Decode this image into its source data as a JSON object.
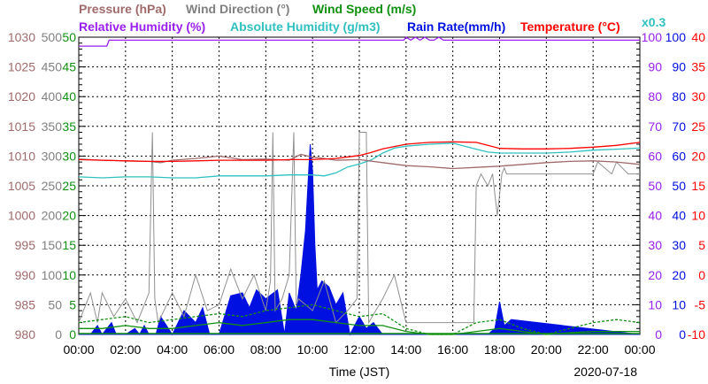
{
  "chart_data": {
    "type": "line",
    "legend": [
      {
        "label": "Pressure (hPa)",
        "color": "#a06a6a"
      },
      {
        "label": "Wind Direction (°)",
        "color": "#808080"
      },
      {
        "label": "Wind Speed (m/s)",
        "color": "#109010"
      },
      {
        "label": "Relative Humidity (%)",
        "color": "#9a1ff0"
      },
      {
        "label": "Absolute Humidity (g/m3)",
        "color": "#30c0c0"
      },
      {
        "label": "Rain Rate(mm/h)",
        "color": "#0010e0"
      },
      {
        "label": "Temperature (°C)",
        "color": "#ff0000"
      },
      {
        "label": "x0.3",
        "color": "#30c0c0"
      }
    ],
    "xlabel": "Time (JST)",
    "date": "2020-07-18",
    "x_ticks": [
      "00:00",
      "02:00",
      "04:00",
      "06:00",
      "08:00",
      "10:00",
      "12:00",
      "14:00",
      "16:00",
      "18:00",
      "20:00",
      "22:00",
      "00:00"
    ],
    "xlim_hours": [
      0,
      24
    ],
    "axes": {
      "pressure": {
        "range": [
          980,
          1030
        ],
        "ticks": [
          "1030",
          "1025",
          "1020",
          "1015",
          "1010",
          "1005",
          "1000",
          "995",
          "990",
          "985",
          "980"
        ],
        "color": "#a06a6a"
      },
      "wind_direction": {
        "range": [
          0,
          500
        ],
        "ticks": [
          "500",
          "450",
          "400",
          "350",
          "300",
          "250",
          "200",
          "150",
          "100",
          "50",
          "0"
        ],
        "color": "#808080"
      },
      "wind_speed": {
        "range": [
          0,
          50
        ],
        "ticks": [
          "50",
          "45",
          "40",
          "35",
          "30",
          "25",
          "20",
          "15",
          "10",
          "5",
          "0"
        ],
        "color": "#109010"
      },
      "humidity": {
        "range": [
          0,
          100
        ],
        "ticks": [
          "100",
          "90",
          "80",
          "70",
          "60",
          "50",
          "40",
          "30",
          "20",
          "10",
          "0"
        ],
        "color": "#9a1ff0"
      },
      "rain": {
        "range": [
          0,
          100
        ],
        "ticks": [
          "100",
          "90",
          "80",
          "70",
          "60",
          "50",
          "40",
          "30",
          "20",
          "10",
          "0"
        ],
        "color": "#0010e0"
      },
      "temperature": {
        "range": [
          -10,
          40
        ],
        "ticks": [
          "40",
          "35",
          "30",
          "25",
          "20",
          "15",
          "10",
          "5",
          "0",
          "-5",
          "-10"
        ],
        "color": "#ff0000"
      }
    },
    "series": [
      {
        "name": "Temperature",
        "axis": "temperature",
        "x": [
          0,
          1,
          2,
          3,
          4,
          5,
          6,
          7,
          8,
          9,
          9.5,
          10,
          11,
          12,
          12.5,
          13,
          13.5,
          14,
          15,
          16,
          17,
          17.5,
          18,
          19,
          20,
          21,
          22,
          23,
          24
        ],
        "y": [
          19.4,
          19.3,
          19.2,
          19.1,
          19.1,
          19.2,
          19.3,
          19.3,
          19.3,
          19.4,
          19.4,
          19.4,
          19.6,
          20.1,
          20.6,
          21.2,
          21.6,
          22,
          22.3,
          22.4,
          22.3,
          21.8,
          21.3,
          21.2,
          21.2,
          21.3,
          21.5,
          21.8,
          22.3
        ]
      },
      {
        "name": "Pressure",
        "axis": "pressure",
        "x": [
          0,
          1,
          2,
          3,
          3.5,
          4,
          5,
          6,
          7,
          8,
          9,
          9.5,
          10,
          10.5,
          11,
          12,
          13,
          14,
          15,
          16,
          17,
          18,
          19,
          20,
          21,
          22,
          23,
          24
        ],
        "y": [
          1009.5,
          1009.3,
          1009.2,
          1009.1,
          1008.9,
          1009.3,
          1009.6,
          1010,
          1009.4,
          1009.5,
          1009.3,
          1010.3,
          1009.8,
          1009.6,
          1009.3,
          1009.4,
          1008.9,
          1008.4,
          1008.2,
          1007.9,
          1008.1,
          1008.3,
          1008.6,
          1008.9,
          1009.1,
          1009.2,
          1009,
          1008.6
        ]
      },
      {
        "name": "Absolute Humidity",
        "axis": "humidity",
        "scale": 0.3,
        "x": [
          0,
          1,
          2,
          3,
          4,
          5,
          6,
          7,
          8,
          9,
          10,
          10.5,
          11,
          11.5,
          12,
          12.5,
          13,
          13.5,
          14,
          15,
          16,
          17,
          17.5,
          18,
          19,
          20,
          21,
          22,
          23,
          24
        ],
        "y": [
          15.9,
          15.8,
          15.9,
          15.9,
          15.8,
          15.8,
          16,
          16,
          16,
          16.1,
          16.1,
          16,
          16.3,
          16.9,
          17.2,
          17.6,
          18.3,
          18.8,
          19,
          19.2,
          19.3,
          18.7,
          18.4,
          18.3,
          18.3,
          18.3,
          18.4,
          18.6,
          18.7,
          18.8
        ]
      },
      {
        "name": "Relative Humidity",
        "axis": "humidity",
        "x": [
          0,
          1.2,
          1.3,
          13.9,
          14,
          14.2,
          14.4,
          14.6,
          14.8,
          15,
          15.2,
          15.4,
          15.6,
          24
        ],
        "y": [
          97,
          97,
          99,
          99,
          100,
          99,
          100,
          99,
          100,
          99,
          99,
          100,
          99,
          99
        ]
      },
      {
        "name": "Rain Rate",
        "axis": "rain",
        "type": "area",
        "x": [
          0,
          0.5,
          0.8,
          1,
          1.4,
          1.6,
          2,
          2.4,
          2.6,
          2.8,
          3,
          3.3,
          3.5,
          4,
          4.5,
          5,
          5.3,
          5.6,
          6,
          6.5,
          7,
          7.3,
          7.6,
          8,
          8.5,
          8.8,
          9,
          9.3,
          9.5,
          9.7,
          9.8,
          9.9,
          10,
          10.1,
          10.2,
          10.4,
          10.7,
          11,
          11.3,
          11.6,
          12,
          12.3,
          12.6,
          13,
          17.5,
          17.8,
          18,
          18.2,
          18.5,
          24
        ],
        "y": [
          0,
          0,
          3,
          0,
          4,
          0,
          0,
          2,
          0,
          3,
          0,
          0,
          6,
          0,
          8,
          4,
          9,
          0,
          0,
          13,
          14,
          9,
          15,
          12,
          15,
          0,
          14,
          8,
          20,
          35,
          50,
          64,
          55,
          30,
          15,
          18,
          16,
          10,
          14,
          0,
          6,
          2,
          4,
          0,
          0,
          2,
          11,
          3,
          5,
          0
        ]
      },
      {
        "name": "Wind Speed gust",
        "axis": "wind_speed",
        "dashed": true,
        "x": [
          0,
          1,
          2,
          3,
          4,
          5,
          6,
          7,
          8,
          9,
          10,
          11,
          12,
          13,
          14,
          15,
          16,
          17,
          18,
          19,
          20,
          21,
          22,
          23,
          24
        ],
        "y": [
          2,
          2.5,
          3,
          2,
          2.5,
          3,
          3.5,
          3,
          4,
          4.5,
          5,
          4,
          3,
          3.5,
          1,
          0,
          0,
          2,
          2.5,
          1,
          0,
          1,
          2,
          2.5,
          2
        ]
      },
      {
        "name": "Wind Speed mean",
        "axis": "wind_speed",
        "x": [
          0,
          1,
          2,
          3,
          4,
          5,
          6,
          7,
          8,
          9,
          10,
          11,
          12,
          13,
          14,
          15,
          16,
          17,
          18,
          19,
          20,
          21,
          22,
          23,
          24
        ],
        "y": [
          1,
          1,
          1.5,
          1,
          1,
          1.5,
          2,
          1.5,
          2,
          2.5,
          2.5,
          2,
          1.5,
          1.5,
          0.5,
          0,
          0,
          0.5,
          1,
          0.5,
          0,
          0.3,
          0.5,
          0.5,
          0.5
        ]
      },
      {
        "name": "Wind Direction",
        "axis": "wind_direction",
        "x": [
          0,
          0.5,
          0.8,
          1,
          1.5,
          2,
          2.5,
          3,
          3.15,
          3.25,
          3.4,
          4,
          4.5,
          5,
          5.5,
          6,
          6.5,
          7,
          7.5,
          8,
          8.2,
          8.3,
          8.4,
          8.7,
          9,
          9.2,
          9.3,
          9.4,
          10,
          10.5,
          11,
          11.5,
          11.9,
          12,
          12.3,
          12.4,
          13,
          13.5,
          14,
          15,
          16,
          16.9,
          17,
          17.2,
          17.5,
          17.7,
          17.9,
          18.1,
          18.2,
          18.3,
          18.5,
          20,
          22,
          22.2,
          22.8,
          23,
          23.5,
          24
        ],
        "y": [
          20,
          70,
          20,
          70,
          30,
          60,
          20,
          70,
          340,
          60,
          20,
          70,
          30,
          100,
          40,
          50,
          110,
          60,
          100,
          40,
          90,
          340,
          40,
          60,
          100,
          340,
          50,
          60,
          40,
          90,
          20,
          40,
          60,
          340,
          340,
          20,
          60,
          100,
          20,
          20,
          20,
          20,
          250,
          270,
          250,
          270,
          200,
          270,
          280,
          270,
          270,
          270,
          270,
          290,
          270,
          290,
          270,
          270
        ]
      }
    ]
  }
}
